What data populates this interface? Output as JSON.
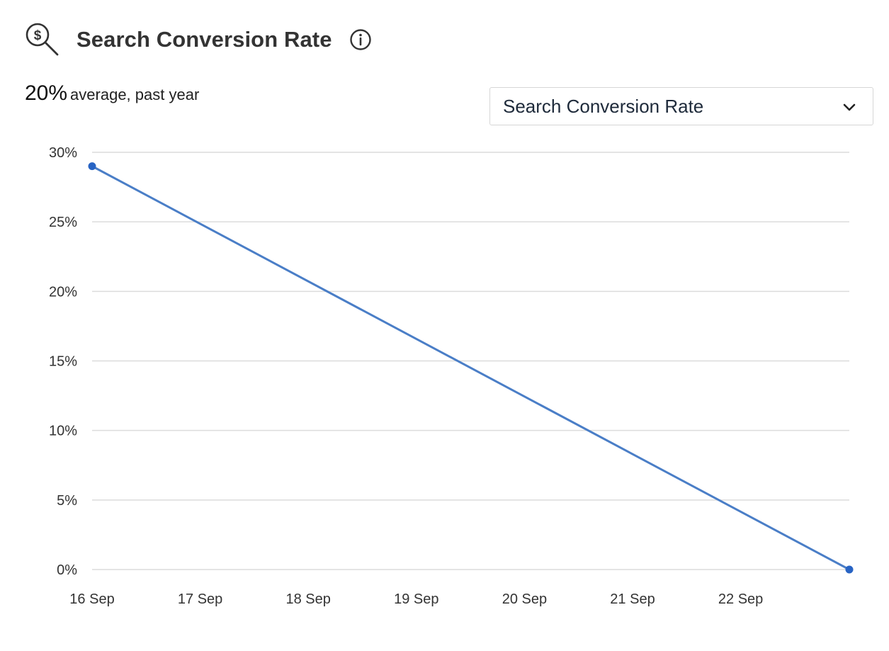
{
  "header": {
    "title": "Search Conversion Rate",
    "icon": "search-dollar-icon",
    "info_icon": "info-icon"
  },
  "summary": {
    "value": "20%",
    "label": "average, past year"
  },
  "metric_select": {
    "selected": "Search Conversion Rate",
    "icon": "chevron-down-icon"
  },
  "colors": {
    "line": "#4a7ec7",
    "marker": "#2864c4",
    "grid": "#dcdcdc"
  },
  "chart_data": {
    "type": "line",
    "title": "",
    "xlabel": "",
    "ylabel": "",
    "x_ticks": [
      "16 Sep",
      "17 Sep",
      "18 Sep",
      "19 Sep",
      "20 Sep",
      "21 Sep",
      "22 Sep"
    ],
    "y_ticks": [
      "30%",
      "25%",
      "20%",
      "15%",
      "10%",
      "5%",
      "0%"
    ],
    "ylim": [
      0,
      30
    ],
    "xlim": [
      "2023-09-16",
      "2023-09-23"
    ],
    "grid": true,
    "legend": "none",
    "series": [
      {
        "points": [
          {
            "x": "2023-09-16",
            "y": 29
          },
          {
            "x": "2023-09-23",
            "y": 0
          }
        ]
      }
    ]
  }
}
